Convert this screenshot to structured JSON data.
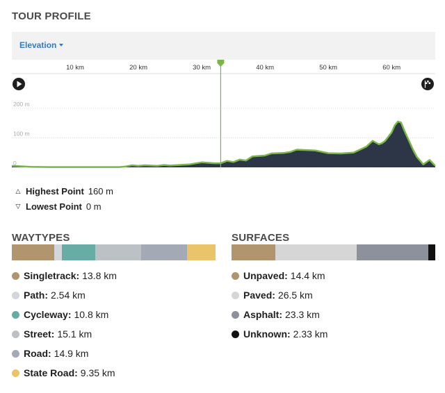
{
  "title": "TOUR PROFILE",
  "dropdown": {
    "label": "Elevation"
  },
  "icons": {
    "start": "play-icon",
    "finish": "flag-icon"
  },
  "colors": {
    "line": "#7ab648",
    "fill": "#2c3646",
    "marker": "#7ab648",
    "accent": "#2a7bd3"
  },
  "chart_data": {
    "type": "area",
    "x_ticks": [
      {
        "v": 10,
        "label": "10 km"
      },
      {
        "v": 20,
        "label": "20 km"
      },
      {
        "v": 30,
        "label": "30 km"
      },
      {
        "v": 40,
        "label": "40 km"
      },
      {
        "v": 50,
        "label": "50 km"
      },
      {
        "v": 60,
        "label": "60 km"
      }
    ],
    "y_ticks": [
      {
        "v": 0,
        "label": "0"
      },
      {
        "v": 100,
        "label": "100 m"
      },
      {
        "v": 200,
        "label": "200 m"
      }
    ],
    "xlim": [
      0,
      66.9
    ],
    "ylim": [
      0,
      200
    ],
    "marker_km": 33,
    "x": [
      0,
      3,
      6,
      10,
      14,
      17,
      18,
      19,
      20,
      21,
      23,
      24,
      25,
      28,
      30,
      32,
      33,
      34,
      35,
      36,
      37,
      38,
      40,
      41,
      43,
      44,
      45,
      48,
      50,
      52,
      54,
      55,
      56,
      57,
      58,
      58.5,
      59,
      60,
      60.5,
      61,
      61.5,
      62,
      63,
      63.5,
      64,
      65,
      66,
      66.9
    ],
    "y": [
      5,
      2,
      1,
      1,
      1,
      1,
      3,
      7,
      5,
      7,
      5,
      8,
      6,
      10,
      17,
      14,
      14,
      22,
      18,
      26,
      23,
      37,
      40,
      47,
      49,
      52,
      60,
      57,
      48,
      47,
      50,
      60,
      70,
      90,
      78,
      82,
      90,
      118,
      142,
      155,
      152,
      125,
      78,
      55,
      35,
      10,
      25,
      5
    ]
  },
  "stats": {
    "highest": {
      "label": "Highest Point",
      "value": "160 m"
    },
    "lowest": {
      "label": "Lowest Point",
      "value": "0 m"
    }
  },
  "waytypes": {
    "title": "WAYTYPES",
    "items": [
      {
        "name": "Singletrack:",
        "value": "13.8 km",
        "km": 13.8,
        "color": "#b0956f"
      },
      {
        "name": "Path:",
        "value": "2.54 km",
        "km": 2.54,
        "color": "#d3d6da"
      },
      {
        "name": "Cycleway:",
        "value": "10.8 km",
        "km": 10.8,
        "color": "#67ada5"
      },
      {
        "name": "Street:",
        "value": "15.1 km",
        "km": 15.1,
        "color": "#bcc1c5"
      },
      {
        "name": "Road:",
        "value": "14.9 km",
        "km": 14.9,
        "color": "#a4a9b6"
      },
      {
        "name": "State Road:",
        "value": "9.35 km",
        "km": 9.35,
        "color": "#e9c46a"
      }
    ]
  },
  "surfaces": {
    "title": "SURFACES",
    "items": [
      {
        "name": "Unpaved:",
        "value": "14.4 km",
        "km": 14.4,
        "color": "#b0956f"
      },
      {
        "name": "Paved:",
        "value": "26.5 km",
        "km": 26.5,
        "color": "#d6d6d6"
      },
      {
        "name": "Asphalt:",
        "value": "23.3 km",
        "km": 23.3,
        "color": "#8c919c"
      },
      {
        "name": "Unknown:",
        "value": "2.33 km",
        "km": 2.33,
        "color": "#111111"
      }
    ]
  }
}
